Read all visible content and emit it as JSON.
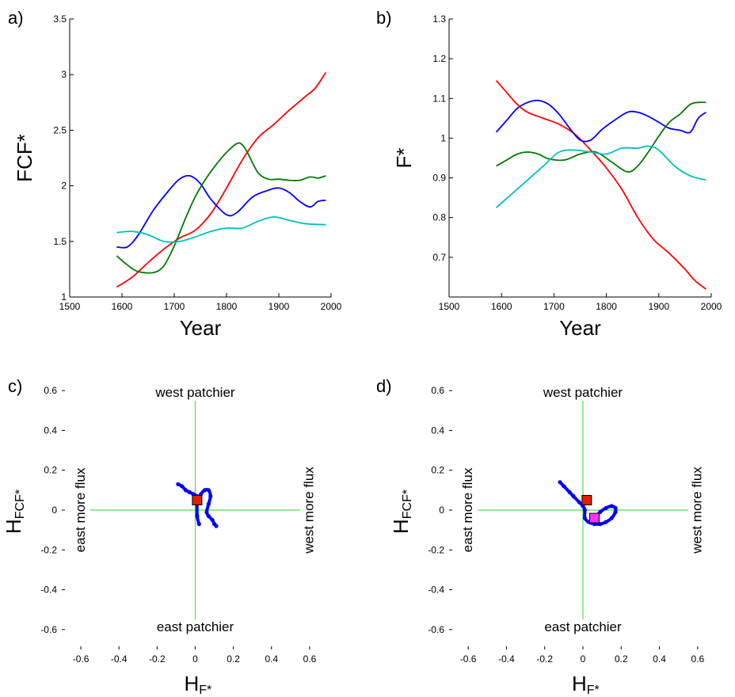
{
  "chart_data": [
    {
      "panel": "a)",
      "type": "line",
      "xlabel": "Year",
      "ylabel": "FCF*",
      "xlim": [
        1500,
        2000
      ],
      "ylim": [
        1,
        3.5
      ],
      "xticks": [
        1500,
        1600,
        1700,
        1800,
        1900,
        2000
      ],
      "yticks": [
        1,
        1.5,
        2,
        2.5,
        3,
        3.5
      ],
      "ytick_labels": [
        "1",
        "1.5",
        "2",
        "2.5",
        "3",
        "3.5"
      ],
      "grid": false,
      "series": [
        {
          "color": "#ff0000",
          "x": [
            1590,
            1620,
            1650,
            1680,
            1710,
            1740,
            1770,
            1800,
            1830,
            1860,
            1890,
            1920,
            1950,
            1970,
            1990
          ],
          "y": [
            1.09,
            1.18,
            1.31,
            1.43,
            1.53,
            1.6,
            1.75,
            1.98,
            2.23,
            2.43,
            2.55,
            2.68,
            2.8,
            2.88,
            3.02
          ]
        },
        {
          "color": "#0000ff",
          "x": [
            1590,
            1610,
            1630,
            1660,
            1690,
            1710,
            1730,
            1750,
            1770,
            1800,
            1820,
            1850,
            1880,
            1900,
            1920,
            1940,
            1960,
            1975,
            1990
          ],
          "y": [
            1.45,
            1.45,
            1.55,
            1.78,
            1.96,
            2.06,
            2.09,
            2.02,
            1.88,
            1.74,
            1.76,
            1.9,
            1.96,
            1.98,
            1.94,
            1.86,
            1.81,
            1.86,
            1.87
          ]
        },
        {
          "color": "#007a00",
          "x": [
            1590,
            1610,
            1630,
            1660,
            1680,
            1700,
            1720,
            1740,
            1760,
            1780,
            1800,
            1820,
            1830,
            1840,
            1860,
            1880,
            1900,
            1920,
            1940,
            1960,
            1975,
            1990
          ],
          "y": [
            1.37,
            1.29,
            1.23,
            1.22,
            1.28,
            1.46,
            1.69,
            1.9,
            2.06,
            2.19,
            2.3,
            2.38,
            2.37,
            2.3,
            2.12,
            2.06,
            2.06,
            2.05,
            2.05,
            2.08,
            2.07,
            2.09
          ]
        },
        {
          "color": "#00c0c0",
          "x": [
            1590,
            1620,
            1650,
            1680,
            1710,
            1740,
            1770,
            1800,
            1830,
            1860,
            1890,
            1920,
            1950,
            1990
          ],
          "y": [
            1.58,
            1.59,
            1.56,
            1.5,
            1.5,
            1.54,
            1.59,
            1.62,
            1.62,
            1.68,
            1.72,
            1.69,
            1.66,
            1.65
          ]
        }
      ]
    },
    {
      "panel": "b)",
      "type": "line",
      "xlabel": "Year",
      "ylabel": "F*",
      "xlim": [
        1500,
        2000
      ],
      "ylim": [
        0.6,
        1.3
      ],
      "xticks": [
        1500,
        1600,
        1700,
        1800,
        1900,
        2000
      ],
      "yticks": [
        0.7,
        0.8,
        0.9,
        1,
        1.1,
        1.2,
        1.3
      ],
      "ytick_labels": [
        "0.7",
        "0.8",
        "0.9",
        "1",
        "1.1",
        "1.2",
        "1.3"
      ],
      "grid": false,
      "series": [
        {
          "color": "#ff0000",
          "x": [
            1590,
            1610,
            1630,
            1650,
            1680,
            1710,
            1740,
            1770,
            1800,
            1830,
            1860,
            1890,
            1920,
            1950,
            1970,
            1990
          ],
          "y": [
            1.145,
            1.115,
            1.085,
            1.065,
            1.05,
            1.035,
            1.01,
            0.97,
            0.925,
            0.87,
            0.8,
            0.745,
            0.71,
            0.67,
            0.64,
            0.62
          ]
        },
        {
          "color": "#0000ff",
          "x": [
            1590,
            1610,
            1630,
            1650,
            1670,
            1690,
            1710,
            1730,
            1750,
            1770,
            1790,
            1810,
            1840,
            1860,
            1880,
            1900,
            1920,
            1940,
            1960,
            1975,
            1990
          ],
          "y": [
            1.015,
            1.045,
            1.075,
            1.09,
            1.095,
            1.085,
            1.06,
            1.025,
            0.995,
            0.995,
            1.02,
            1.04,
            1.065,
            1.065,
            1.055,
            1.04,
            1.025,
            1.02,
            1.015,
            1.05,
            1.065
          ]
        },
        {
          "color": "#007a00",
          "x": [
            1590,
            1610,
            1630,
            1650,
            1670,
            1690,
            1720,
            1750,
            1780,
            1810,
            1840,
            1860,
            1880,
            1900,
            1920,
            1940,
            1960,
            1975,
            1990
          ],
          "y": [
            0.93,
            0.945,
            0.96,
            0.965,
            0.96,
            0.948,
            0.945,
            0.96,
            0.965,
            0.94,
            0.915,
            0.93,
            0.965,
            1.005,
            1.04,
            1.06,
            1.085,
            1.09,
            1.09
          ]
        },
        {
          "color": "#00c0c0",
          "x": [
            1590,
            1620,
            1650,
            1680,
            1710,
            1740,
            1770,
            1800,
            1830,
            1860,
            1880,
            1900,
            1930,
            1960,
            1990
          ],
          "y": [
            0.825,
            0.86,
            0.895,
            0.93,
            0.965,
            0.97,
            0.965,
            0.96,
            0.975,
            0.975,
            0.98,
            0.97,
            0.93,
            0.905,
            0.895
          ]
        }
      ]
    },
    {
      "panel": "c)",
      "type": "scatter",
      "xlabel_main": "H",
      "xlabel_sub": "F*",
      "ylabel_main": "H",
      "ylabel_sub": "FCF*",
      "xlim": [
        -0.7,
        0.7
      ],
      "ylim": [
        -0.7,
        0.7
      ],
      "xticks": [
        -0.6,
        -0.4,
        -0.2,
        0,
        0.2,
        0.4,
        0.6
      ],
      "xtick_labels": [
        "-0.6",
        "-0.4",
        "-0.2",
        "0",
        "0.2",
        "0.4",
        "0.6"
      ],
      "yticks": [
        -0.6,
        -0.4,
        -0.2,
        0,
        0.2,
        0.4,
        0.6
      ],
      "ytick_labels": [
        "-0.6",
        "-0.4",
        "-0.2",
        "0",
        "0.2",
        "0.4",
        "0.6"
      ],
      "crosshair_color": "#55dd55",
      "annotations": {
        "top": "west patchier",
        "bottom": "east patchier",
        "left": "east more flux",
        "right": "west more flux"
      },
      "trajectory": {
        "color": "#0000ff",
        "x": [
          -0.09,
          -0.07,
          -0.05,
          -0.03,
          -0.01,
          0.01,
          0.02,
          0.03,
          0.05,
          0.07,
          0.08,
          0.07,
          0.06,
          0.07,
          0.09,
          0.1,
          0.11
        ],
        "y": [
          0.13,
          0.12,
          0.1,
          0.09,
          0.08,
          0.07,
          0.05,
          0.08,
          0.1,
          0.1,
          0.07,
          0.03,
          -0.01,
          -0.03,
          -0.05,
          -0.07,
          -0.08
        ]
      },
      "trajectory_branch": {
        "color": "#0000ff",
        "x": [
          0.01,
          0.01,
          0.02
        ],
        "y": [
          0.05,
          -0.03,
          -0.07
        ]
      },
      "markers": [
        {
          "x": 0.01,
          "y": 0.05,
          "color": "#e02000",
          "edge": "#000000"
        }
      ]
    },
    {
      "panel": "d)",
      "type": "scatter",
      "xlabel_main": "H",
      "xlabel_sub": "F*",
      "ylabel_main": "H",
      "ylabel_sub": "FCF*",
      "xlim": [
        -0.7,
        0.7
      ],
      "ylim": [
        -0.7,
        0.7
      ],
      "xticks": [
        -0.6,
        -0.4,
        -0.2,
        0,
        0.2,
        0.4,
        0.6
      ],
      "xtick_labels": [
        "-0.6",
        "-0.4",
        "-0.2",
        "0",
        "0.2",
        "0.4",
        "0.6"
      ],
      "yticks": [
        -0.6,
        -0.4,
        -0.2,
        0,
        0.2,
        0.4,
        0.6
      ],
      "ytick_labels": [
        "-0.6",
        "-0.4",
        "-0.2",
        "0",
        "0.2",
        "0.4",
        "0.6"
      ],
      "crosshair_color": "#55dd55",
      "annotations": {
        "top": "west patchier",
        "bottom": "east patchier",
        "left": "east more flux",
        "right": "west more flux"
      },
      "trajectory": {
        "color": "#0000ff",
        "x": [
          -0.12,
          -0.1,
          -0.07,
          -0.05,
          -0.02,
          0.0,
          0.01,
          0.01,
          0.03,
          0.06,
          0.09,
          0.12,
          0.15,
          0.17,
          0.17,
          0.15,
          0.12,
          0.09,
          0.07,
          0.06
        ],
        "y": [
          0.14,
          0.12,
          0.09,
          0.07,
          0.04,
          0.02,
          0.0,
          -0.04,
          -0.06,
          -0.07,
          -0.07,
          -0.06,
          -0.04,
          -0.01,
          0.01,
          0.02,
          0.01,
          -0.01,
          -0.03,
          -0.04
        ]
      },
      "markers": [
        {
          "x": 0.02,
          "y": 0.05,
          "color": "#e02000",
          "edge": "#000000"
        },
        {
          "x": 0.06,
          "y": -0.04,
          "color": "#ff33ff",
          "edge": "#000000"
        }
      ]
    }
  ]
}
